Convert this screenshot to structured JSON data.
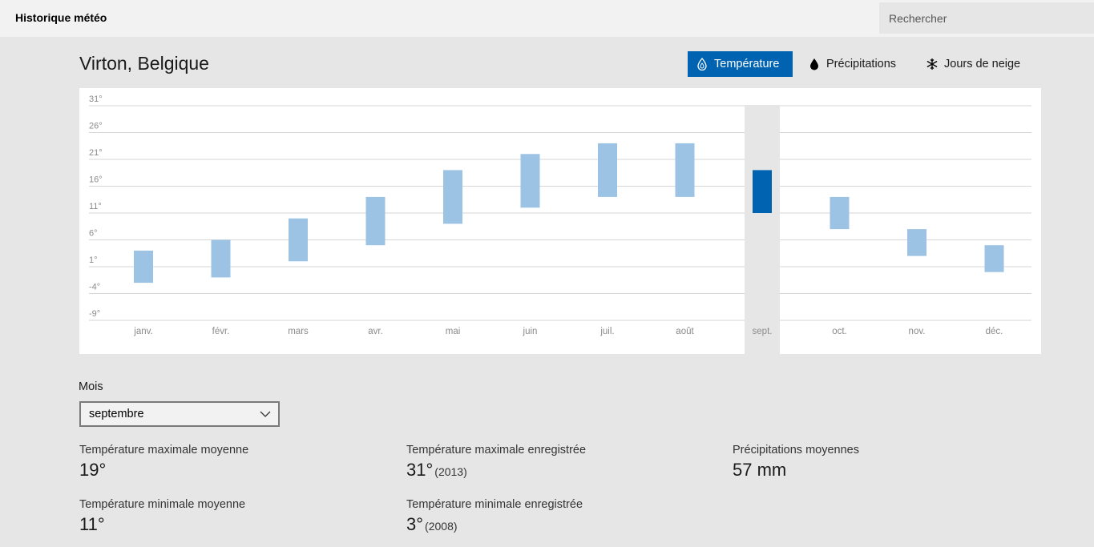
{
  "app": {
    "title": "Historique météo"
  },
  "search": {
    "placeholder": "Rechercher"
  },
  "location": {
    "name": "Virton, Belgique"
  },
  "tabs": [
    {
      "label": "Température",
      "icon": "thermometer-drop-icon",
      "active": true
    },
    {
      "label": "Précipitations",
      "icon": "raindrop-icon",
      "active": false
    },
    {
      "label": "Jours de neige",
      "icon": "snowflake-icon",
      "active": false
    }
  ],
  "colors": {
    "accent": "#0063b1",
    "bar": "#9cc3e4",
    "bar_selected": "#0063b1",
    "selected_column": "#e6e6e6"
  },
  "chart_data": {
    "type": "bar",
    "subtype": "floating-range",
    "categories": [
      "janv.",
      "févr.",
      "mars",
      "avr.",
      "mai",
      "juin",
      "juil.",
      "août",
      "sept.",
      "oct.",
      "nov.",
      "déc."
    ],
    "series": [
      {
        "name": "min",
        "values": [
          -2,
          -1,
          2,
          5,
          9,
          12,
          14,
          14,
          11,
          8,
          3,
          0
        ]
      },
      {
        "name": "max",
        "values": [
          4,
          6,
          10,
          14,
          19,
          22,
          24,
          24,
          19,
          14,
          8,
          5
        ]
      }
    ],
    "selected_index": 8,
    "yticks": [
      "31°",
      "26°",
      "21°",
      "16°",
      "11°",
      "6°",
      "1°",
      "-4°",
      "-9°"
    ],
    "ylim": [
      -9,
      31
    ],
    "grid": true,
    "title": "",
    "xlabel": "",
    "ylabel": ""
  },
  "month_select": {
    "label": "Mois",
    "value": "septembre"
  },
  "stats": {
    "avg_max": {
      "label": "Température maximale moyenne",
      "value": "19°"
    },
    "avg_min": {
      "label": "Température minimale moyenne",
      "value": "11°"
    },
    "rec_max": {
      "label": "Température maximale enregistrée",
      "value": "31°",
      "year": "(2013)"
    },
    "rec_min": {
      "label": "Température minimale enregistrée",
      "value": "3°",
      "year": "(2008)"
    },
    "precip": {
      "label": "Précipitations moyennes",
      "value": "57 mm"
    }
  }
}
